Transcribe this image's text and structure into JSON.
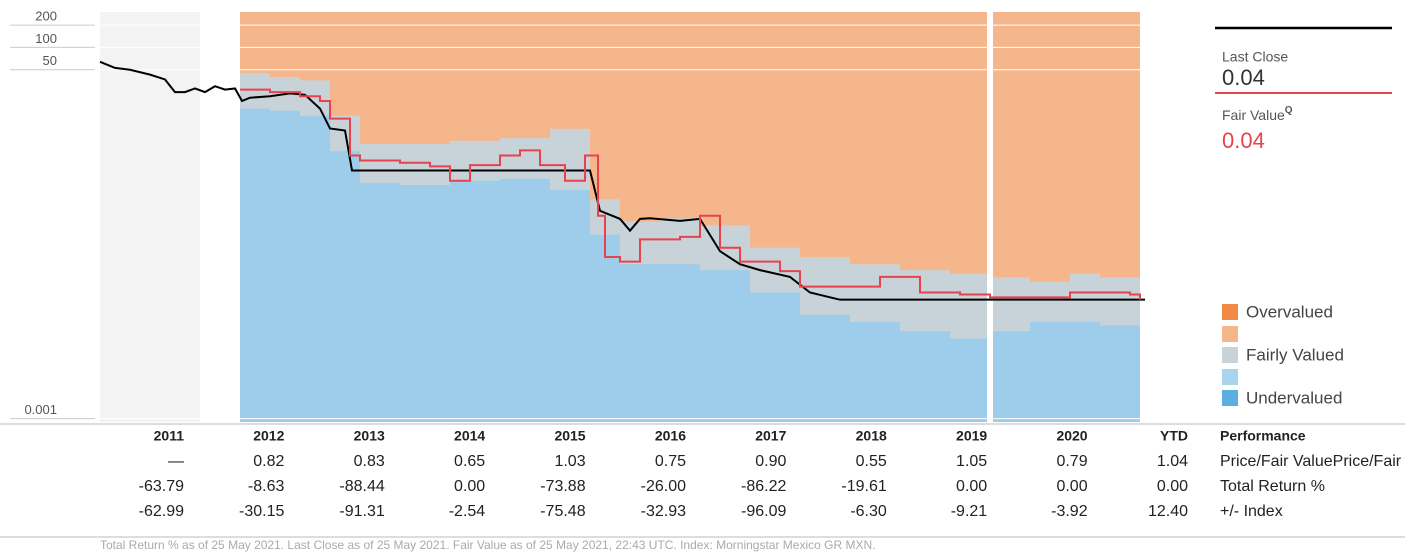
{
  "chart_data": {
    "type": "line",
    "log_y": true,
    "ylim": [
      0.0009,
      300
    ],
    "yticks": [
      0.001,
      50,
      100,
      200
    ],
    "xlim": [
      2011,
      2021.4
    ],
    "series": [
      {
        "name": "Last Close",
        "color": "#000000",
        "latest": 0.04,
        "x": [
          2011.0,
          2011.15,
          2011.3,
          2011.5,
          2011.65,
          2011.75,
          2011.85,
          2011.95,
          2012.05,
          2012.15,
          2012.25,
          2012.35,
          2012.42,
          2012.5,
          2012.7,
          2012.9,
          2013.05,
          2013.2,
          2013.3,
          2013.45,
          2013.52,
          2014.0,
          2015.9,
          2016.0,
          2016.2,
          2016.3,
          2016.4,
          2016.5,
          2016.8,
          2017.0,
          2017.2,
          2017.4,
          2017.6,
          2017.9,
          2018.1,
          2018.3,
          2018.4,
          2021.45
        ],
        "values": [
          64,
          53,
          50,
          43,
          37,
          25,
          25,
          28,
          25,
          30,
          27,
          28,
          19,
          21,
          22,
          24,
          23,
          15,
          8.1,
          7.6,
          2.2,
          2.2,
          2.2,
          0.63,
          0.49,
          0.34,
          0.49,
          0.5,
          0.46,
          0.49,
          0.18,
          0.12,
          0.1,
          0.081,
          0.05,
          0.043,
          0.04,
          0.04
        ]
      },
      {
        "name": "Fair Value",
        "color": "#e8424c",
        "latest": 0.04,
        "step": true,
        "x": [
          2012.4,
          2012.7,
          2013.0,
          2013.2,
          2013.3,
          2013.5,
          2013.6,
          2014.0,
          2014.3,
          2014.5,
          2014.7,
          2015.0,
          2015.2,
          2015.4,
          2015.65,
          2015.85,
          2015.98,
          2016.05,
          2016.2,
          2016.4,
          2016.8,
          2017.0,
          2017.2,
          2017.4,
          2017.8,
          2018.0,
          2018.4,
          2018.8,
          2019.2,
          2019.6,
          2019.9,
          2020.3,
          2020.7,
          2021.0,
          2021.3,
          2021.4
        ],
        "values": [
          27,
          25,
          22,
          19,
          11,
          3.5,
          3.0,
          2.8,
          2.5,
          1.6,
          2.6,
          3.5,
          4.1,
          2.6,
          1.6,
          3.5,
          0.54,
          0.15,
          0.13,
          0.26,
          0.28,
          0.54,
          0.2,
          0.13,
          0.097,
          0.06,
          0.06,
          0.081,
          0.05,
          0.047,
          0.043,
          0.043,
          0.05,
          0.05,
          0.047,
          0.04
        ]
      }
    ],
    "bands": {
      "x": [
        2012.4,
        2012.7,
        2013.0,
        2013.3,
        2013.6,
        2014.0,
        2014.5,
        2015.0,
        2015.5,
        2015.9,
        2016.2,
        2016.6,
        2017.0,
        2017.5,
        2018.0,
        2018.5,
        2019.0,
        2019.5,
        2019.9,
        2020.3,
        2020.7,
        2021.0,
        2021.4
      ],
      "upper": [
        45,
        40,
        36,
        12,
        5,
        5,
        5.5,
        6,
        8,
        0.9,
        0.45,
        0.5,
        0.4,
        0.2,
        0.15,
        0.12,
        0.1,
        0.09,
        0.08,
        0.07,
        0.09,
        0.08,
        0.07
      ],
      "lower": [
        15,
        14,
        12,
        4,
        1.5,
        1.4,
        1.6,
        1.7,
        1.2,
        0.3,
        0.12,
        0.12,
        0.1,
        0.05,
        0.025,
        0.02,
        0.015,
        0.012,
        0.015,
        0.02,
        0.02,
        0.018,
        0.02
      ],
      "colors": {
        "over": "#f6b68c",
        "fair": "#c7d3d9",
        "under": "#9dcdea"
      }
    },
    "fair_value_mark": "Q",
    "legend": [
      {
        "name": "Overvalued",
        "color": "#f08a46"
      },
      {
        "name": "Fairly Valued",
        "color": "#c7d3d9"
      },
      {
        "name": "Undervalued",
        "color": "#5aaee0"
      }
    ]
  },
  "table": {
    "columns": [
      "2011",
      "2012",
      "2013",
      "2014",
      "2015",
      "2016",
      "2017",
      "2018",
      "2019",
      "2020",
      "YTD"
    ],
    "header": "Performance",
    "rows": [
      {
        "label": "Price/Fair Value",
        "values": [
          "—",
          "0.82",
          "0.83",
          "0.65",
          "1.03",
          "0.75",
          "0.90",
          "0.55",
          "1.05",
          "0.79",
          "1.04"
        ]
      },
      {
        "label": "Total Return %",
        "values": [
          "-63.79",
          "-8.63",
          "-88.44",
          "0.00",
          "-73.88",
          "-26.00",
          "-86.22",
          "-19.61",
          "0.00",
          "0.00",
          "0.00"
        ]
      },
      {
        "label": "+/- Index",
        "values": [
          "-62.99",
          "-30.15",
          "-91.31",
          "-2.54",
          "-75.48",
          "-32.93",
          "-96.09",
          "-6.30",
          "-9.21",
          "-3.92",
          "12.40"
        ]
      }
    ]
  },
  "footnote": "Total Return % as of 25 May 2021. Last Close as of 25 May 2021. Fair Value as of 25 May 2021, 22:43 UTC. Index: Morningstar Mexico GR MXN."
}
